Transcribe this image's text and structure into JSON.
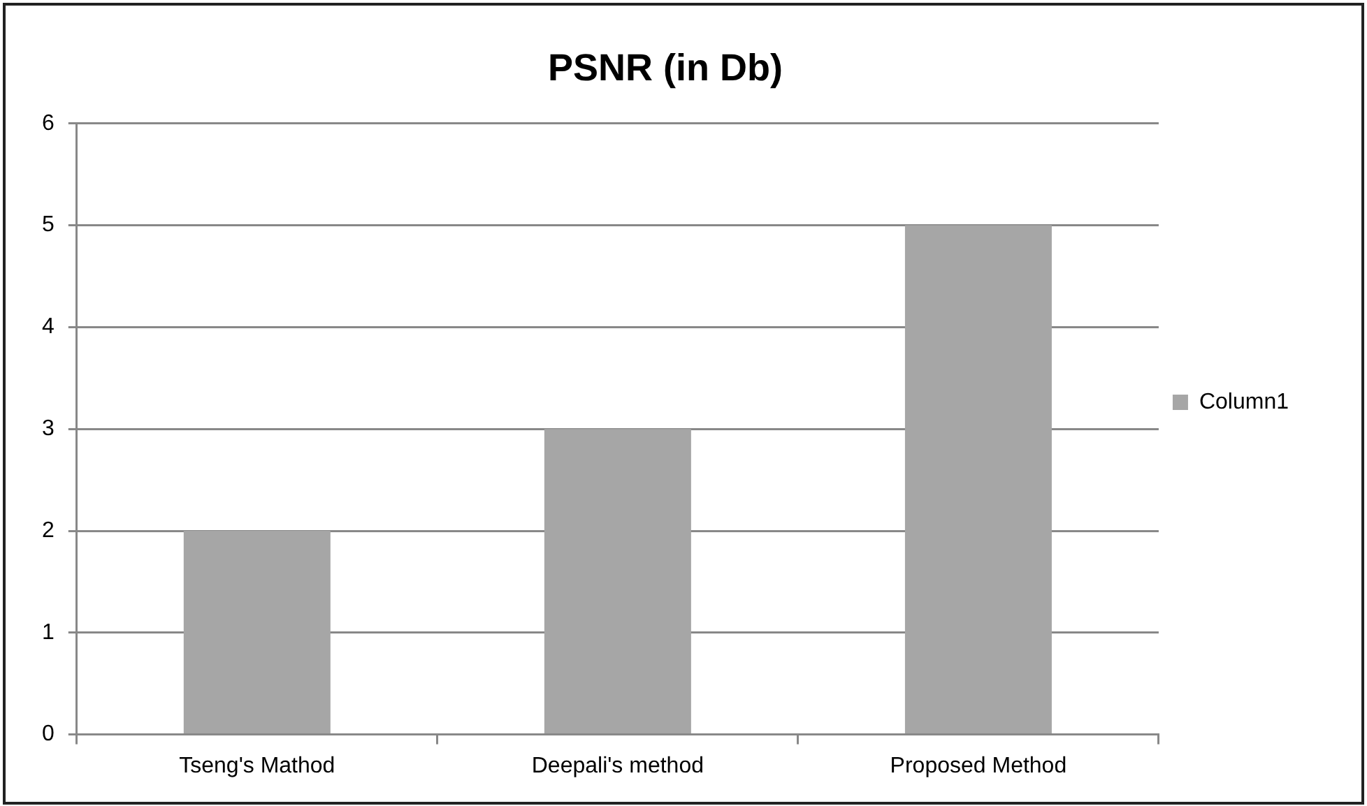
{
  "chart_data": {
    "type": "bar",
    "title": "PSNR (in Db)",
    "categories": [
      "Tseng's Mathod",
      "Deepali's method",
      "Proposed Method"
    ],
    "series": [
      {
        "name": "Column1",
        "color": "#a6a6a6",
        "values": [
          2,
          3,
          5
        ]
      }
    ],
    "ylim": [
      0,
      6
    ],
    "yticks": [
      0,
      1,
      2,
      3,
      4,
      5,
      6
    ],
    "grid": "y",
    "legend": "right"
  }
}
